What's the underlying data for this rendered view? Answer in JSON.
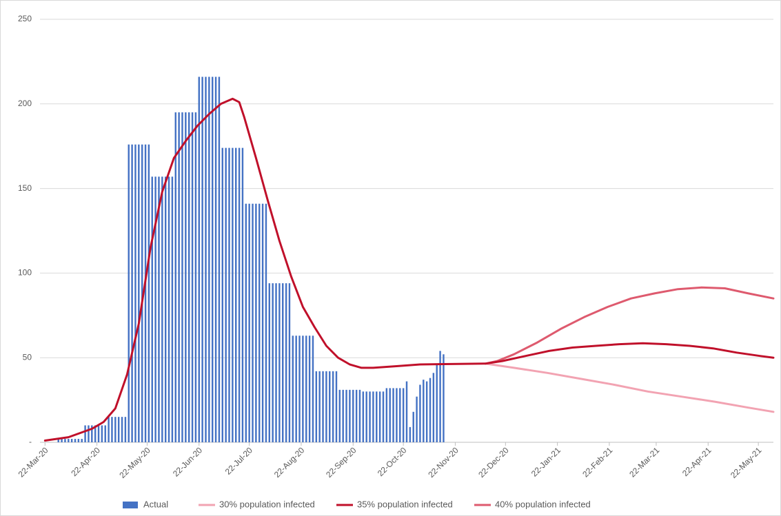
{
  "chart_data": {
    "type": "bar-line",
    "xlim": [
      -3,
      435
    ],
    "xticks": [
      {
        "value": 0,
        "label": "22-Mar-20"
      },
      {
        "value": 31,
        "label": "22-Apr-20"
      },
      {
        "value": 61,
        "label": "22-May-20"
      },
      {
        "value": 92,
        "label": "22-Jun-20"
      },
      {
        "value": 122,
        "label": "22-Jul-20"
      },
      {
        "value": 153,
        "label": "22-Aug-20"
      },
      {
        "value": 184,
        "label": "22-Sep-20"
      },
      {
        "value": 214,
        "label": "22-Oct-20"
      },
      {
        "value": 245,
        "label": "22-Nov-20"
      },
      {
        "value": 275,
        "label": "22-Dec-20"
      },
      {
        "value": 306,
        "label": "22-Jan-21"
      },
      {
        "value": 337,
        "label": "22-Feb-21"
      },
      {
        "value": 365,
        "label": "22-Mar-21"
      },
      {
        "value": 396,
        "label": "22-Apr-21"
      },
      {
        "value": 426,
        "label": "22-May-21"
      }
    ],
    "ylim": [
      0,
      250
    ],
    "yticks": [
      {
        "value": 0,
        "label": "-"
      },
      50,
      100,
      150,
      200,
      250
    ],
    "grid": true,
    "series": [
      {
        "name": "Actual",
        "kind": "bar",
        "color": "#4472c4",
        "x": [
          8,
          10,
          12,
          14,
          16,
          18,
          20,
          22,
          24,
          26,
          28,
          30,
          32,
          34,
          36,
          38,
          40,
          42,
          44,
          46,
          48,
          50,
          52,
          54,
          56,
          58,
          60,
          62,
          64,
          66,
          68,
          70,
          72,
          74,
          76,
          78,
          80,
          82,
          84,
          86,
          88,
          90,
          92,
          94,
          96,
          98,
          100,
          102,
          104,
          106,
          108,
          110,
          112,
          114,
          116,
          118,
          120,
          122,
          124,
          126,
          128,
          130,
          132,
          134,
          136,
          138,
          140,
          142,
          144,
          146,
          148,
          150,
          152,
          154,
          156,
          158,
          160,
          162,
          164,
          166,
          168,
          170,
          172,
          174,
          176,
          178,
          180,
          182,
          184,
          186,
          188,
          190,
          192,
          194,
          196,
          198,
          200,
          202,
          204,
          206,
          208,
          210,
          212,
          214,
          216,
          218,
          220,
          222,
          224,
          226,
          228,
          230,
          232,
          234,
          236,
          238
        ],
        "values": [
          2,
          2,
          2,
          2,
          2,
          2,
          2,
          2,
          10,
          10,
          10,
          10,
          10,
          10,
          10,
          15,
          15,
          15,
          15,
          15,
          15,
          176,
          176,
          176,
          176,
          176,
          176,
          176,
          157,
          157,
          157,
          157,
          157,
          157,
          157,
          195,
          195,
          195,
          195,
          195,
          195,
          195,
          216,
          216,
          216,
          216,
          216,
          216,
          216,
          174,
          174,
          174,
          174,
          174,
          174,
          174,
          141,
          141,
          141,
          141,
          141,
          141,
          141,
          94,
          94,
          94,
          94,
          94,
          94,
          94,
          63,
          63,
          63,
          63,
          63,
          63,
          63,
          42,
          42,
          42,
          42,
          42,
          42,
          42,
          31,
          31,
          31,
          31,
          31,
          31,
          31,
          30,
          30,
          30,
          30,
          30,
          30,
          30,
          32,
          32,
          32,
          32,
          32,
          32,
          36,
          9,
          18,
          27,
          34,
          37,
          36,
          38,
          41,
          46,
          54,
          52
        ]
      },
      {
        "name": "30% population infected",
        "kind": "line",
        "color": "#f2a3b2",
        "x": [
          263,
          280,
          300,
          320,
          340,
          360,
          380,
          400,
          420,
          435
        ],
        "values": [
          46.5,
          44,
          41,
          37.5,
          34,
          30,
          27,
          24,
          20.5,
          18
        ]
      },
      {
        "name": "35% population infected",
        "kind": "line",
        "color": "#c0102a",
        "x": [
          0,
          14,
          28,
          35,
          42,
          49,
          56,
          63,
          70,
          77,
          84,
          91,
          98,
          105,
          112,
          116,
          119,
          126,
          133,
          140,
          147,
          154,
          161,
          168,
          175,
          182,
          189,
          196,
          210,
          224,
          263,
          273,
          287,
          301,
          315,
          329,
          343,
          357,
          371,
          385,
          399,
          413,
          427,
          435
        ],
        "values": [
          1,
          3,
          8,
          12,
          20,
          40,
          70,
          115,
          148,
          168,
          178,
          187,
          194,
          200,
          203,
          201,
          192,
          168,
          143,
          119,
          98,
          80,
          68,
          57,
          50,
          46,
          44,
          44,
          45,
          46,
          46.5,
          48,
          51,
          54,
          56,
          57,
          58,
          58.5,
          58,
          57,
          55.5,
          53,
          51,
          50
        ]
      },
      {
        "name": "40% population infected",
        "kind": "line",
        "color": "#de5a6e",
        "x": [
          263,
          270,
          280,
          294,
          308,
          322,
          336,
          350,
          364,
          378,
          392,
          406,
          420,
          435
        ],
        "values": [
          46.5,
          48,
          52,
          59,
          67,
          74,
          80,
          85,
          88,
          90.5,
          91.5,
          91,
          88,
          85
        ]
      }
    ]
  }
}
